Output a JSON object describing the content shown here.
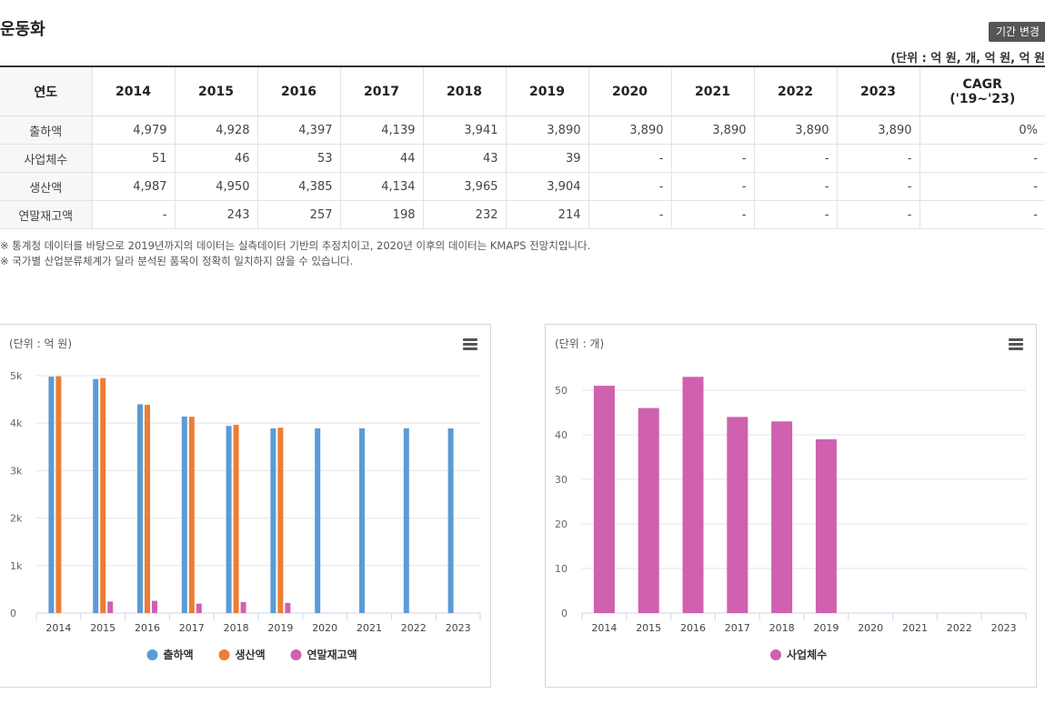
{
  "page": {
    "title": "운동화",
    "period_button": "기간 변경",
    "unit": "(단위 : 억 원, 개, 억 원, 억 원"
  },
  "table": {
    "header": [
      "연도",
      "2014",
      "2015",
      "2016",
      "2017",
      "2018",
      "2019",
      "2020",
      "2021",
      "2022",
      "2023"
    ],
    "cagr_line1": "CAGR",
    "cagr_line2": "('19~'23)",
    "rows": [
      {
        "label": "출하액",
        "values": [
          "4,979",
          "4,928",
          "4,397",
          "4,139",
          "3,941",
          "3,890",
          "3,890",
          "3,890",
          "3,890",
          "3,890"
        ],
        "cagr": "0%"
      },
      {
        "label": "사업체수",
        "values": [
          "51",
          "46",
          "53",
          "44",
          "43",
          "39",
          "-",
          "-",
          "-",
          "-"
        ],
        "cagr": "-"
      },
      {
        "label": "생산액",
        "values": [
          "4,987",
          "4,950",
          "4,385",
          "4,134",
          "3,965",
          "3,904",
          "-",
          "-",
          "-",
          "-"
        ],
        "cagr": "-"
      },
      {
        "label": "연말재고액",
        "values": [
          "-",
          "243",
          "257",
          "198",
          "232",
          "214",
          "-",
          "-",
          "-",
          "-"
        ],
        "cagr": "-"
      }
    ]
  },
  "notes": [
    "※ 통계청 데이터를 바탕으로 2019년까지의 데이터는 실측데이터 기반의 추정치이고, 2020년 이후의 데이터는 KMAPS 전망치입니다.",
    "※ 국가별 산업분류체계가 달라 분석된 품목이 정확히 일치하지 않을 수 있습니다."
  ],
  "icons": {
    "menu": "hamburger-menu-icon",
    "legend_marker": "circle"
  },
  "colors": {
    "shipment": "#5b9bd5",
    "production": "#ed7d31",
    "inventory": "#d060b0",
    "businesses": "#d060b0"
  },
  "chart_data": [
    {
      "type": "bar",
      "title": "",
      "unit_label": "(단위 : 억 원)",
      "categories": [
        "2014",
        "2015",
        "2016",
        "2017",
        "2018",
        "2019",
        "2020",
        "2021",
        "2022",
        "2023"
      ],
      "ylim": [
        0,
        5000
      ],
      "yticks": [
        "0",
        "1k",
        "2k",
        "3k",
        "4k",
        "5k"
      ],
      "grid": true,
      "legend_position": "bottom",
      "series": [
        {
          "name": "출하액",
          "values": [
            4979,
            4928,
            4397,
            4139,
            3941,
            3890,
            3890,
            3890,
            3890,
            3890
          ]
        },
        {
          "name": "생산액",
          "values": [
            4987,
            4950,
            4385,
            4134,
            3965,
            3904,
            null,
            null,
            null,
            null
          ]
        },
        {
          "name": "연말재고액",
          "values": [
            null,
            243,
            257,
            198,
            232,
            214,
            null,
            null,
            null,
            null
          ]
        }
      ]
    },
    {
      "type": "bar",
      "title": "",
      "unit_label": "(단위 : 개)",
      "categories": [
        "2014",
        "2015",
        "2016",
        "2017",
        "2018",
        "2019",
        "2020",
        "2021",
        "2022",
        "2023"
      ],
      "ylim": [
        0,
        50
      ],
      "yticks": [
        "0",
        "10",
        "20",
        "30",
        "40",
        "50"
      ],
      "grid": true,
      "legend_position": "bottom",
      "series": [
        {
          "name": "사업체수",
          "values": [
            51,
            46,
            53,
            44,
            43,
            39,
            null,
            null,
            null,
            null
          ]
        }
      ]
    }
  ]
}
